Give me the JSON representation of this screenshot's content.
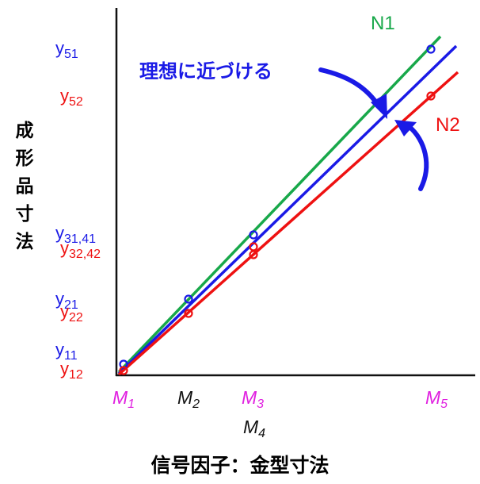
{
  "colors": {
    "blue": "#1a1ae6",
    "red": "#ee1111",
    "green": "#18a84a",
    "magenta": "#e020e0",
    "black": "#111111"
  },
  "vertical_title_chars": [
    "成",
    "形",
    "品",
    "寸",
    "法"
  ],
  "horizontal_title": "信号因子：金型寸法",
  "annotation": "理想に近づける",
  "series_labels": {
    "n1": "N1",
    "n2": "N2"
  },
  "y_labels": {
    "y51": {
      "base": "y",
      "sub": "51"
    },
    "y52": {
      "base": "y",
      "sub": "52"
    },
    "y3141": {
      "base": "y",
      "sub": "31,41"
    },
    "y3242": {
      "base": "y",
      "sub": "32,42"
    },
    "y21": {
      "base": "y",
      "sub": "21"
    },
    "y22": {
      "base": "y",
      "sub": "22"
    },
    "y11": {
      "base": "y",
      "sub": "11"
    },
    "y12": {
      "base": "y",
      "sub": "12"
    }
  },
  "x_labels": {
    "m1": {
      "base": "M",
      "sub": "1"
    },
    "m2": {
      "base": "M",
      "sub": "2"
    },
    "m3": {
      "base": "M",
      "sub": "3"
    },
    "m4": {
      "base": "M",
      "sub": "4"
    },
    "m5": {
      "base": "M",
      "sub": "5"
    }
  }
}
